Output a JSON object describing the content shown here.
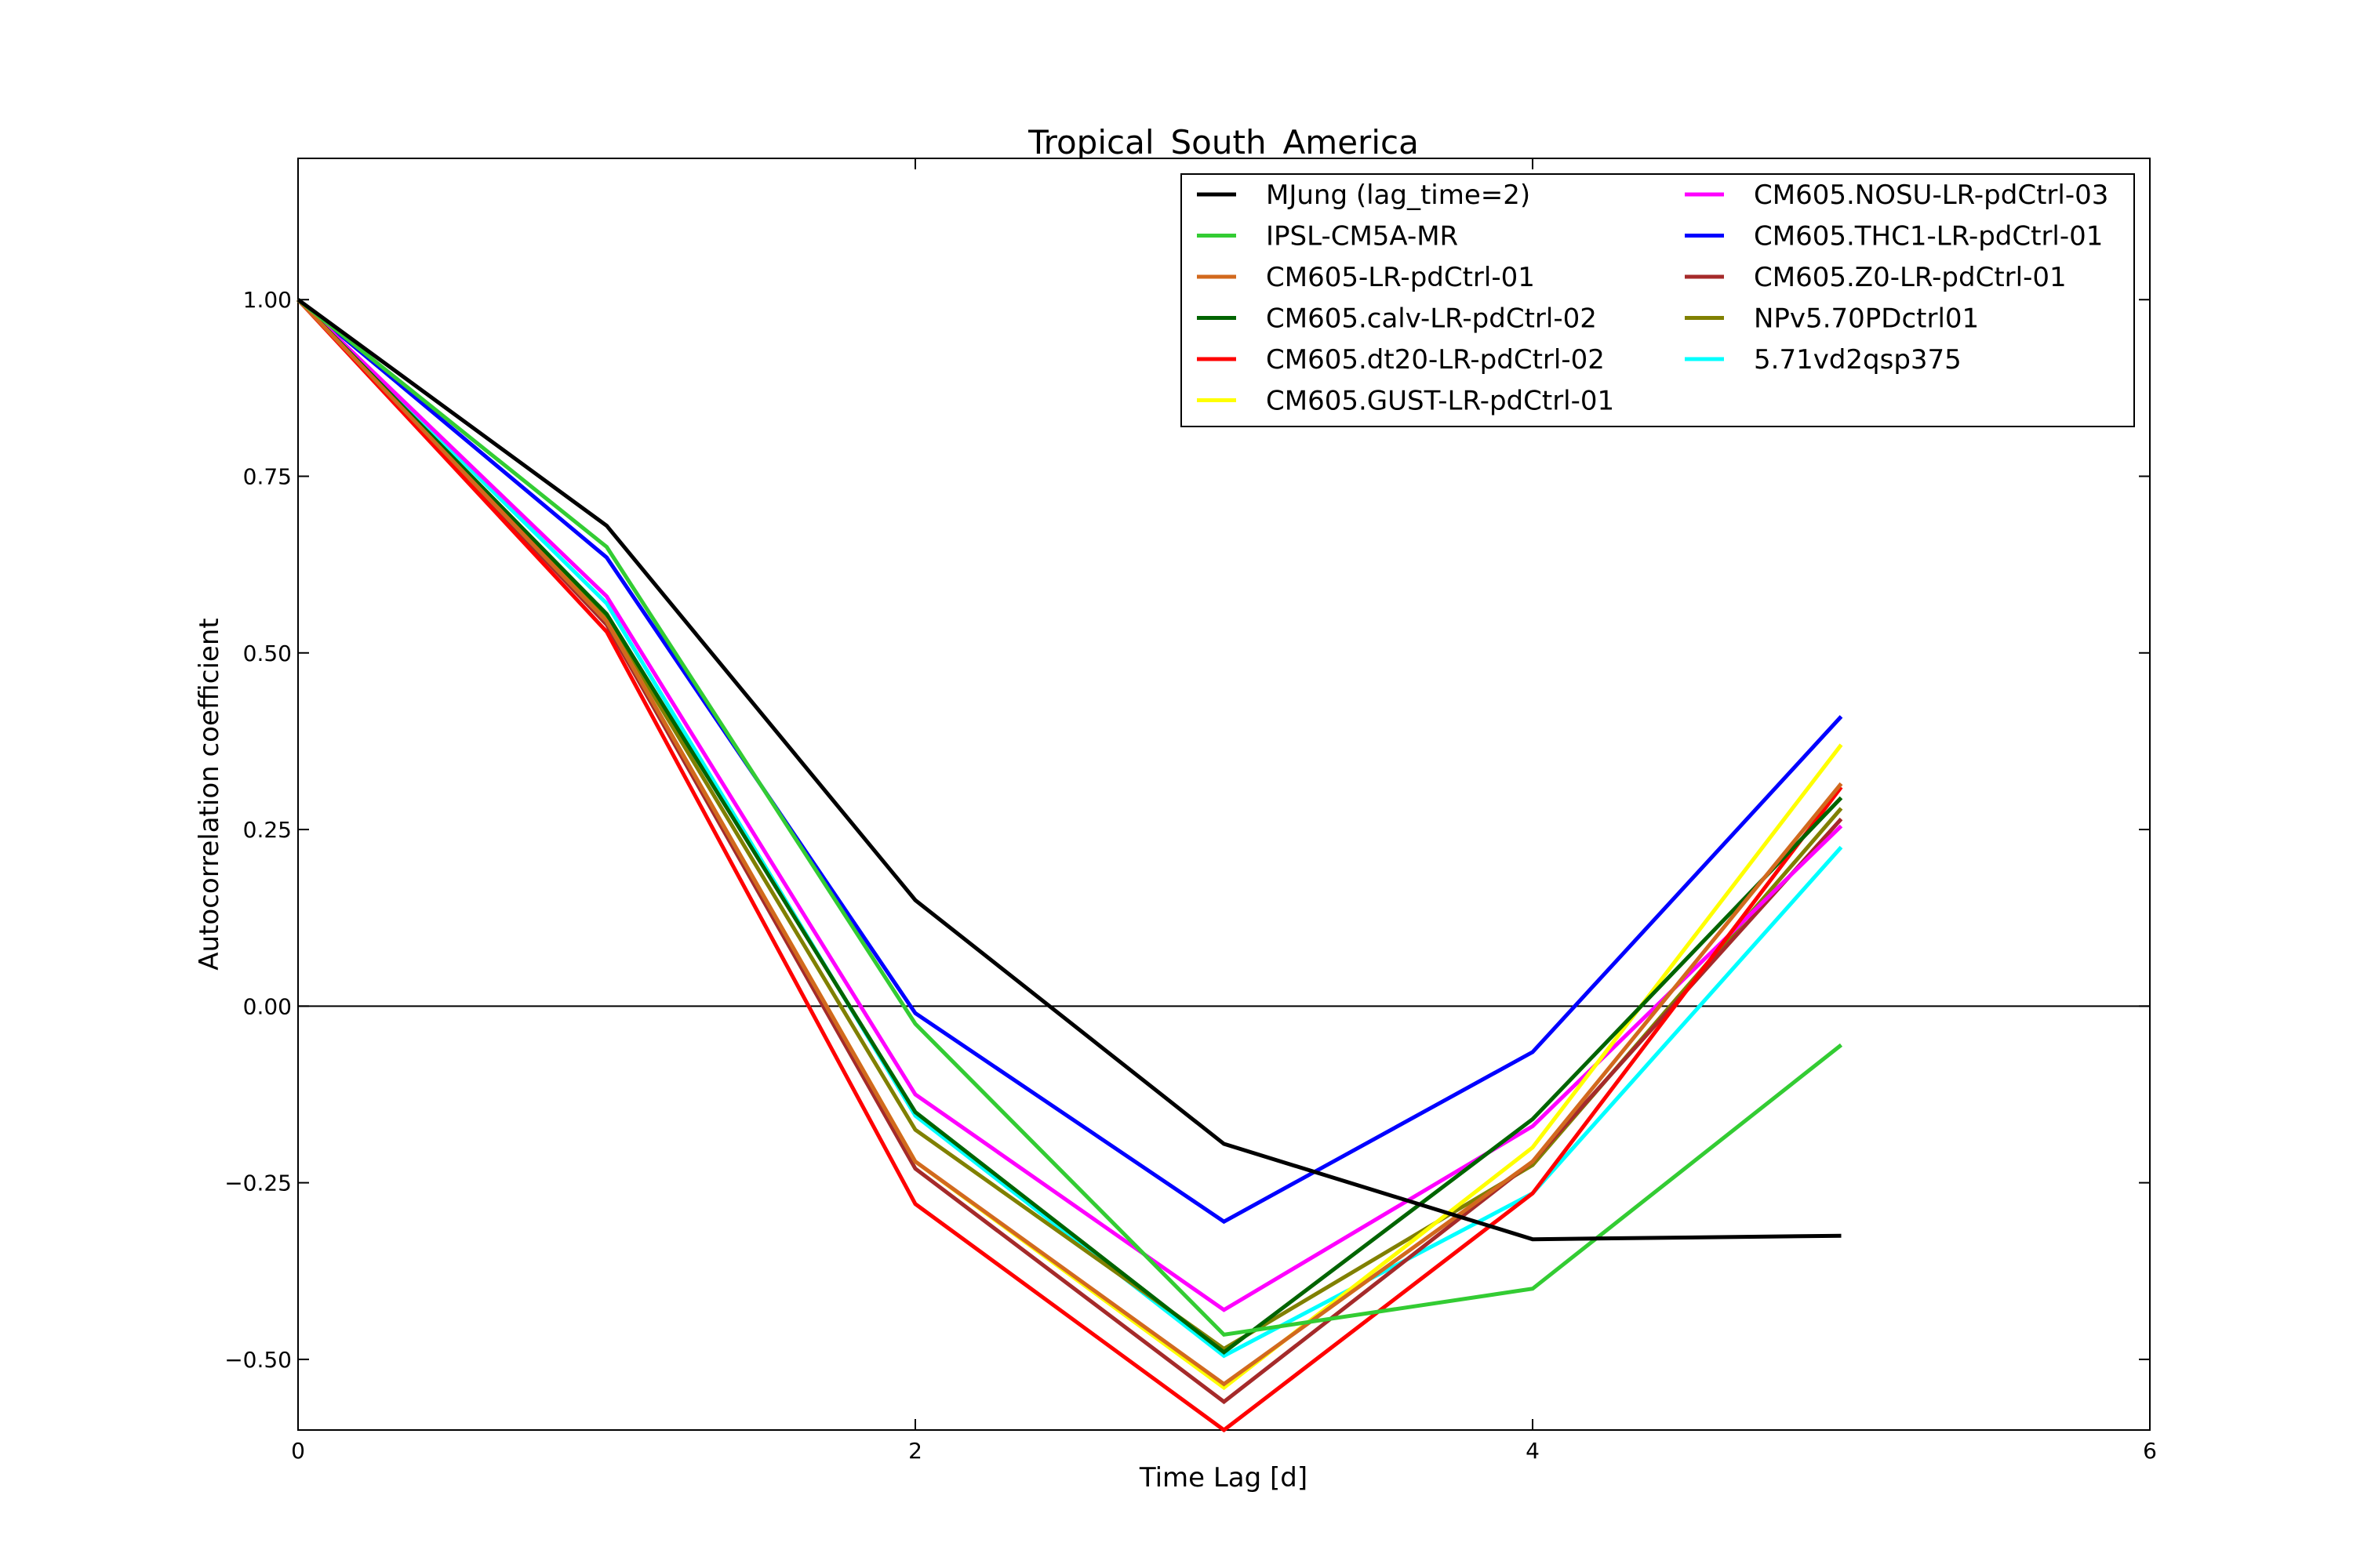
{
  "chart_data": {
    "type": "line",
    "title": "Tropical_South_America",
    "xlabel": "Time Lag [d]",
    "ylabel": "Autocorrelation coefficient",
    "xlim": [
      0,
      6
    ],
    "ylim": [
      -0.6,
      1.2
    ],
    "xticks": [
      0,
      2,
      4,
      6
    ],
    "xtick_labels": [
      "0",
      "2",
      "4",
      "6"
    ],
    "yticks": [
      1.0,
      0.75,
      0.5,
      0.25,
      0.0,
      -0.25,
      -0.5
    ],
    "ytick_labels": [
      "1.00",
      "0.75",
      "0.50",
      "0.25",
      "0.00",
      "−0.25",
      "−0.50"
    ],
    "zero_line": true,
    "grid": false,
    "legend_position": "top-right",
    "legend_columns": 2,
    "x": [
      0,
      1,
      2,
      3,
      4,
      5
    ],
    "series": [
      {
        "name": "MJung (lag_time=2)",
        "color": "#000000",
        "values": [
          1.0,
          0.68,
          0.15,
          -0.195,
          -0.33,
          -0.325
        ]
      },
      {
        "name": "IPSL-CM5A-MR",
        "color": "#33cc33",
        "values": [
          1.0,
          0.65,
          -0.025,
          -0.465,
          -0.4,
          -0.055
        ]
      },
      {
        "name": "CM605-LR-pdCtrl-01",
        "color": "#d2691e",
        "values": [
          1.0,
          0.545,
          -0.22,
          -0.535,
          -0.22,
          0.315
        ]
      },
      {
        "name": "CM605.calv-LR-pdCtrl-02",
        "color": "#006400",
        "values": [
          1.0,
          0.555,
          -0.15,
          -0.49,
          -0.16,
          0.295
        ]
      },
      {
        "name": "CM605.dt20-LR-pdCtrl-02",
        "color": "#ff0000",
        "values": [
          1.0,
          0.53,
          -0.28,
          -0.6,
          -0.265,
          0.31
        ]
      },
      {
        "name": "CM605.GUST-LR-pdCtrl-01",
        "color": "#ffff00",
        "values": [
          1.0,
          0.545,
          -0.22,
          -0.54,
          -0.2,
          0.37
        ]
      },
      {
        "name": "CM605.NOSU-LR-pdCtrl-03",
        "color": "#ff00ff",
        "values": [
          1.0,
          0.58,
          -0.125,
          -0.43,
          -0.17,
          0.255
        ]
      },
      {
        "name": "CM605.THC1-LR-pdCtrl-01",
        "color": "#0000ff",
        "values": [
          1.0,
          0.635,
          -0.01,
          -0.305,
          -0.065,
          0.41
        ]
      },
      {
        "name": "CM605.Z0-LR-pdCtrl-01",
        "color": "#a52a2a",
        "values": [
          1.0,
          0.54,
          -0.23,
          -0.56,
          -0.22,
          0.265
        ]
      },
      {
        "name": "NPv5.70PDctrl01",
        "color": "#808000",
        "values": [
          1.0,
          0.55,
          -0.175,
          -0.485,
          -0.225,
          0.28
        ]
      },
      {
        "name": "5.71vd2qsp375",
        "color": "#00ffff",
        "values": [
          1.0,
          0.57,
          -0.155,
          -0.495,
          -0.265,
          0.225
        ]
      }
    ]
  }
}
